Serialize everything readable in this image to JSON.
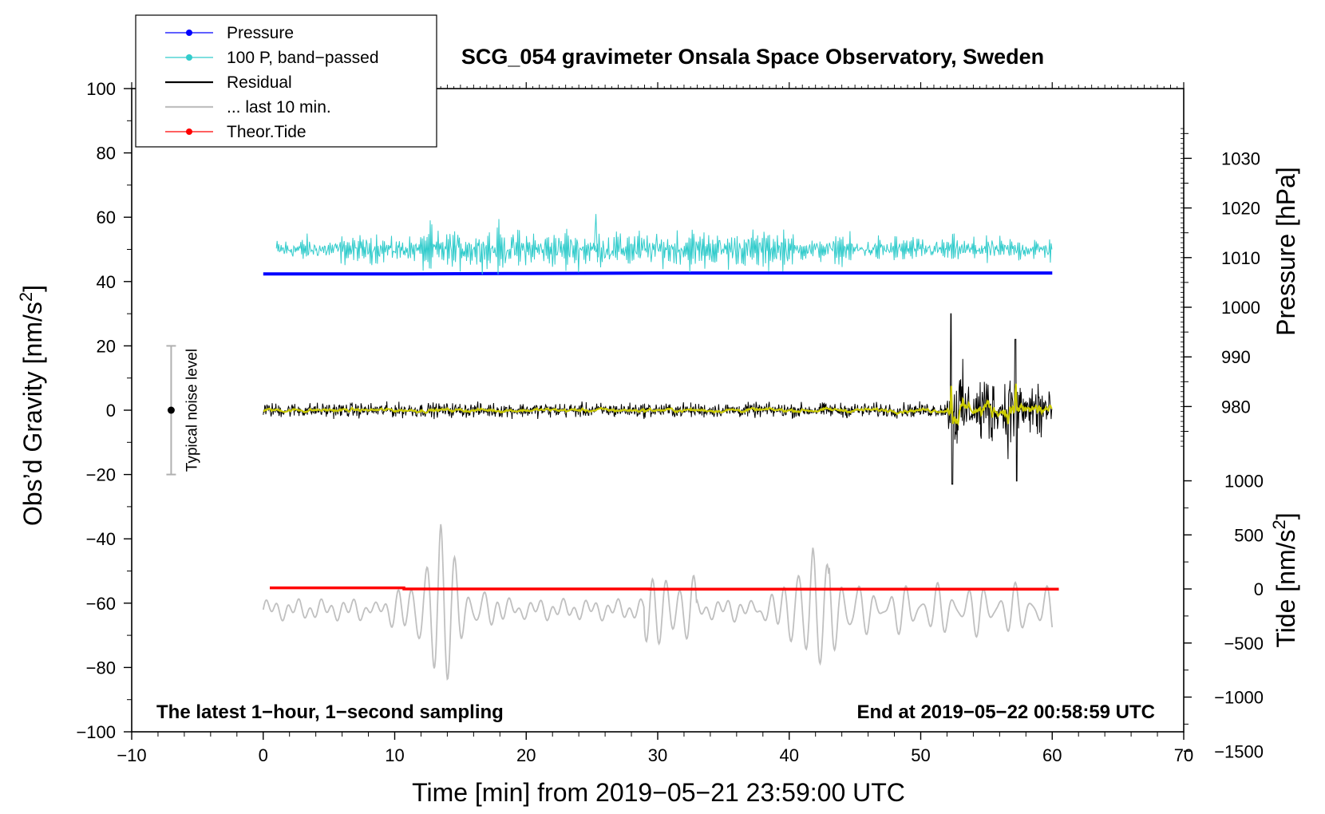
{
  "chart_data": {
    "type": "line",
    "title": "SCG_054 gravimeter Onsala Space Observatory, Sweden",
    "annotation_left": "The latest 1−hour, 1−second sampling",
    "annotation_right": "End at 2019−05−22 00:58:59 UTC",
    "xlabel": "Time [min] from 2019−05−21 23:59:00 UTC",
    "ylabel_left": "Obs’d Gravity [nm/s",
    "ylabel_left_sup": "2",
    "ylabel_left_close": "]",
    "ylabel_right_pressure": "Pressure [hPa]",
    "ylabel_right_tide": "Tide [nm/s",
    "ylabel_right_tide_sup": "2",
    "ylabel_right_tide_close": "]",
    "xlim": [
      -10,
      70
    ],
    "ylim_left": [
      -100,
      100
    ],
    "x_ticks": [
      "−10",
      "0",
      "10",
      "20",
      "30",
      "40",
      "50",
      "60",
      "70"
    ],
    "y_ticks_left": [
      "100",
      "80",
      "60",
      "40",
      "20",
      "0",
      "−20",
      "−40",
      "−60",
      "−80",
      "−100"
    ],
    "pressure_ticks": [
      "1030",
      "1020",
      "1010",
      "1000",
      "990",
      "980"
    ],
    "tide_ticks": [
      "1000",
      "500",
      "0",
      "−500",
      "−1000",
      "−1500"
    ],
    "noise_level_label": "Typical noise level",
    "noise_level": {
      "x": -7,
      "center": 0,
      "half_range": 20
    },
    "legend": [
      {
        "label": "Pressure",
        "color": "#0000ff",
        "marker": "dot"
      },
      {
        "label": "100 P, band−passed",
        "color": "#33cccc",
        "marker": "dot"
      },
      {
        "label": "Residual",
        "color": "#000000",
        "marker": "none"
      },
      {
        "label": "... last 10 min.",
        "color": "#c0c0c0",
        "marker": "none"
      },
      {
        "label": "Theor.Tide",
        "color": "#ff0000",
        "marker": "dot"
      }
    ],
    "series": [
      {
        "name": "Pressure",
        "color": "#0000ff",
        "axis": "pressure_hPa",
        "x": [
          0,
          10,
          20,
          30,
          40,
          50,
          60
        ],
        "values": [
          1006.7,
          1006.7,
          1006.8,
          1006.9,
          1006.9,
          1006.9,
          1006.9
        ]
      },
      {
        "name": "100 P, band-passed",
        "color": "#33cccc",
        "axis": "gravity_offset",
        "x_range": [
          1,
          60
        ],
        "baseline": 50,
        "amplitude": 5,
        "burst_amplitude": 9,
        "spike": {
          "x": 25.3,
          "value": 61
        }
      },
      {
        "name": "Residual",
        "color": "#000000",
        "axis": "gravity",
        "x_range": [
          0,
          60
        ],
        "baseline": 0,
        "amplitude": 2,
        "burst_window": [
          52,
          60
        ],
        "burst_max": 30,
        "burst_min": -23
      },
      {
        "name": "Residual smoothed",
        "color": "#cccc00",
        "axis": "gravity",
        "x_range": [
          0,
          60
        ],
        "baseline": 0,
        "amplitude": 1
      },
      {
        "name": "... last 10 min.",
        "color": "#c0c0c0",
        "axis": "gravity_offset",
        "x_range": [
          0,
          60
        ],
        "baseline": -62,
        "peaks": [
          {
            "x": 13.5,
            "max": -32,
            "min": -85
          },
          {
            "x": 41.8,
            "max": -41,
            "min": -84
          }
        ]
      },
      {
        "name": "Theor.Tide",
        "color": "#ff0000",
        "axis": "tide_nm_s2",
        "x": [
          0.5,
          10.7,
          10.7,
          29.4,
          29.4,
          60.5
        ],
        "values": [
          10,
          10,
          0,
          0,
          -2,
          -2
        ]
      }
    ]
  }
}
